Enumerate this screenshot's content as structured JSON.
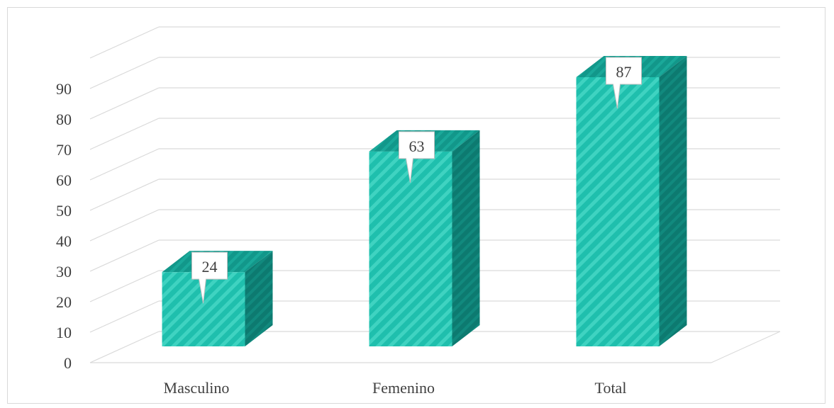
{
  "chart_data": {
    "type": "bar",
    "style": "3d-column",
    "categories": [
      "Masculino",
      "Femenino",
      "Total"
    ],
    "values": [
      24,
      63,
      87
    ],
    "ylim": [
      0,
      90
    ],
    "yticks": [
      "0",
      "10",
      "20",
      "30",
      "40",
      "50",
      "60",
      "70",
      "80",
      "90"
    ],
    "data_labels": [
      "24",
      "63",
      "87"
    ],
    "grid": true,
    "legend": "none",
    "colors": {
      "bar_front": "#1fbfad",
      "bar_stripe": "#3fd3c1",
      "bar_top": "#12978a",
      "bar_side": "#0d7a70",
      "grid": "#d9d9d9"
    }
  }
}
